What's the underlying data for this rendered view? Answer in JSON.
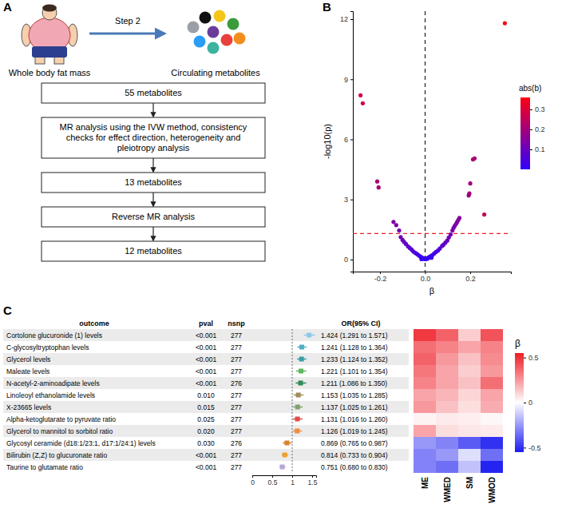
{
  "diagram": {
    "label": "A",
    "source": "Whole body fat mass",
    "step": "Step 2",
    "target": "Circulating metabolites",
    "boxes": [
      "55 metabolites",
      "MR analysis using the IVW method, consistency checks for effect direction, heterogeneity and pleiotropy analysis",
      "13 metabolites",
      "Reverse MR analysis",
      "12 metabolites"
    ]
  },
  "chart_data": [
    {
      "type": "scatter",
      "label": "B",
      "xlabel": "β",
      "ylabel": "-log10(p)",
      "x": [
        0.353,
        -0.286,
        -0.276,
        0.212,
        0.219,
        -0.212,
        -0.206,
        0.2,
        0.196,
        0.193,
        0.262,
        0.152,
        0.147,
        0.142,
        0.137,
        0.131,
        0.126,
        0.121,
        -0.14,
        -0.128,
        -0.115,
        0.113,
        0.105,
        0.098,
        0.09,
        0.082,
        0.075,
        0.065,
        0.057,
        0.048,
        0.04,
        0.032,
        0.025,
        0.018,
        0.012,
        0.006,
        0.002,
        -0.003,
        -0.008,
        -0.014,
        -0.02,
        -0.027,
        -0.035,
        -0.043,
        -0.052,
        -0.06,
        -0.068,
        -0.076,
        -0.085,
        -0.093,
        -0.1,
        -0.108,
        0.01,
        -0.016,
        0.028
      ],
      "y": [
        11.8,
        8.2,
        7.8,
        5.0,
        5.05,
        3.9,
        3.6,
        3.8,
        3.3,
        3.2,
        2.25,
        2.08,
        1.98,
        1.88,
        1.78,
        1.68,
        1.58,
        1.45,
        1.88,
        1.72,
        1.45,
        1.25,
        1.1,
        0.95,
        0.85,
        0.75,
        0.68,
        0.55,
        0.45,
        0.38,
        0.3,
        0.22,
        0.17,
        0.12,
        0.08,
        0.05,
        0.02,
        0.03,
        0.06,
        0.1,
        0.14,
        0.2,
        0.27,
        0.33,
        0.4,
        0.5,
        0.58,
        0.66,
        0.78,
        0.88,
        0.98,
        1.12,
        0.04,
        0.02,
        0.09
      ],
      "xlim": [
        -0.32,
        0.38
      ],
      "ylim": [
        -0.6,
        12.4
      ],
      "xticks": [
        -0.2,
        {
          "value": 0,
          "label": "0.0"
        },
        0.2
      ],
      "yticks": [
        0,
        3,
        6,
        9,
        12
      ],
      "hline": 1.3,
      "vline": 0,
      "grid": false,
      "marker": "circle",
      "colorbar": {
        "title": "abs(b)",
        "range": [
          0,
          0.36
        ],
        "ticks": [
          0.1,
          0.2,
          0.3
        ]
      }
    },
    {
      "type": "forest",
      "label": "C",
      "orientation": "horizontal",
      "columns": [
        "outcome",
        "pval",
        "nsnp",
        "OR(95% CI)"
      ],
      "categories": [
        "Cortolone glucuronide (1) levels",
        "C-glycosyltryptophan levels",
        "Glycerol levels",
        "Maleate levels",
        "N-acetyl-2-aminoadipate levels",
        "Linoleoyl ethanolamide levels",
        "X-23665 levels",
        "Alpha-ketoglutarate to pyruvate ratio",
        "Glycerol to mannitol to sorbitol ratio",
        "Glycosyl ceramide (d18:1/23:1, d17:1/24:1) levels",
        "Bilirubin (Z,Z) to glucuronate ratio",
        "Taurine to glutamate ratio"
      ],
      "pval": [
        "<0.001",
        "<0.001",
        "<0.001",
        "<0.001",
        "<0.001",
        "0.010",
        "0.015",
        "0.025",
        "0.020",
        "0.030",
        "<0.001",
        "<0.001"
      ],
      "nsnp": [
        277,
        277,
        277,
        277,
        276,
        277,
        277,
        277,
        277,
        276,
        277,
        277
      ],
      "values": [
        1.424,
        1.241,
        1.233,
        1.221,
        1.211,
        1.153,
        1.137,
        1.131,
        1.126,
        0.869,
        0.814,
        0.751
      ],
      "lower": [
        1.291,
        1.128,
        1.124,
        1.101,
        1.086,
        1.035,
        1.025,
        1.016,
        1.019,
        0.765,
        0.733,
        0.68
      ],
      "upper": [
        1.571,
        1.364,
        1.352,
        1.354,
        1.35,
        1.285,
        1.261,
        1.26,
        1.245,
        0.987,
        0.904,
        0.83
      ],
      "value_labels": [
        "1.424 (1.291 to 1.571)",
        "1.241 (1.128 to 1.364)",
        "1.233 (1.124 to 1.352)",
        "1.221 (1.101 to 1.354)",
        "1.211 (1.086 to 1.350)",
        "1.153 (1.035 to 1.285)",
        "1.137 (1.025 to 1.261)",
        "1.131 (1.016 to 1.260)",
        "1.126 (1.019 to 1.245)",
        "0.869 (0.765 to 0.987)",
        "0.814 (0.733 to 0.904)",
        "0.751 (0.680 to 0.830)"
      ],
      "colors": [
        "#8fc9e8",
        "#4fb0c6",
        "#3a9ea5",
        "#5cb85c",
        "#2e8b57",
        "#a08c5b",
        "#7fa36b",
        "#e04b4b",
        "#f08c3c",
        "#d9822b",
        "#f0a030",
        "#b9a6d9"
      ],
      "xlim": [
        0,
        1.6
      ],
      "xticks": [
        0,
        0.5,
        1,
        1.5
      ],
      "reference": 1
    },
    {
      "type": "heatmap",
      "columns": [
        "ME",
        "WMED",
        "SM",
        "WMOD"
      ],
      "values": [
        [
          0.48,
          0.38,
          0.12,
          0.42
        ],
        [
          0.35,
          0.3,
          0.22,
          0.3
        ],
        [
          0.38,
          0.25,
          0.15,
          0.28
        ],
        [
          0.33,
          0.22,
          0.12,
          0.25
        ],
        [
          0.3,
          0.22,
          0.15,
          0.35
        ],
        [
          0.22,
          0.18,
          0.1,
          0.22
        ],
        [
          0.25,
          0.15,
          0.08,
          0.2
        ],
        [
          0.03,
          0.05,
          0.04,
          0.02
        ],
        [
          0.22,
          0.08,
          0.06,
          0.05
        ],
        [
          -0.25,
          -0.3,
          -0.4,
          -0.5
        ],
        [
          -0.3,
          -0.25,
          -0.08,
          -0.35
        ],
        [
          -0.3,
          -0.35,
          -0.15,
          -0.53
        ]
      ],
      "colorbar": {
        "title": "β",
        "range": [
          -0.55,
          0.55
        ],
        "ticks": [
          -0.5,
          0,
          0.5
        ]
      }
    }
  ]
}
